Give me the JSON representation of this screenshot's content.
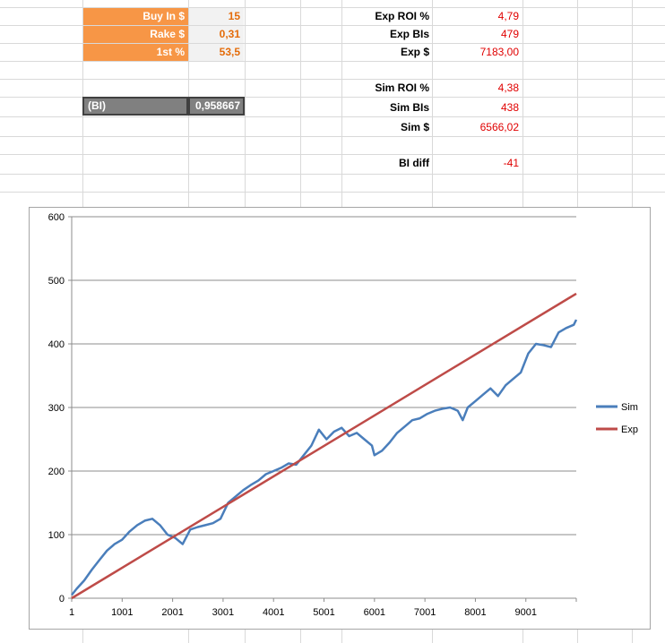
{
  "inputs": [
    {
      "label": "Buy In $",
      "value": "15"
    },
    {
      "label": "Rake $",
      "value": "0,31"
    },
    {
      "label": "1st %",
      "value": "53,5"
    }
  ],
  "bi": {
    "label": "(BI)",
    "value": "0,958667"
  },
  "stats": [
    {
      "label": "Exp ROI %",
      "value": "4,79"
    },
    {
      "label": "Exp BIs",
      "value": "479"
    },
    {
      "label": "Exp $",
      "value": "7183,00"
    },
    {
      "label": "Sim ROI %",
      "value": "4,38"
    },
    {
      "label": "Sim BIs",
      "value": "438"
    },
    {
      "label": "Sim $",
      "value": "6566,02"
    },
    {
      "label": "BI diff",
      "value": "-41"
    }
  ],
  "colors": {
    "orange": "#f79646",
    "sim": "#4a7ebb",
    "exp": "#be4b48",
    "red_text": "#e00000"
  },
  "chart_data": {
    "type": "line",
    "title": "",
    "xlabel": "",
    "ylabel": "",
    "ylim": [
      0,
      600
    ],
    "xlim": [
      1,
      10000
    ],
    "yticks": [
      0,
      100,
      200,
      300,
      400,
      500,
      600
    ],
    "xticks": [
      "1",
      "1001",
      "2001",
      "3001",
      "4001",
      "5001",
      "6001",
      "7001",
      "8001",
      "9001"
    ],
    "grid": true,
    "legend_position": "right",
    "series": [
      {
        "name": "Sim",
        "color": "#4a7ebb",
        "x": [
          1,
          100,
          250,
          400,
          550,
          700,
          850,
          1000,
          1150,
          1300,
          1450,
          1600,
          1750,
          1900,
          2050,
          2200,
          2350,
          2500,
          2650,
          2800,
          2950,
          3100,
          3250,
          3400,
          3550,
          3700,
          3850,
          4000,
          4150,
          4300,
          4450,
          4600,
          4750,
          4900,
          5050,
          5200,
          5350,
          5500,
          5650,
          5800,
          5950,
          6000,
          6150,
          6300,
          6450,
          6600,
          6750,
          6900,
          7050,
          7200,
          7350,
          7500,
          7650,
          7750,
          7850,
          8000,
          8150,
          8300,
          8450,
          8600,
          8750,
          8900,
          9050,
          9200,
          9350,
          9500,
          9650,
          9800,
          9950,
          10000
        ],
        "values": [
          5,
          15,
          28,
          45,
          60,
          75,
          85,
          92,
          105,
          115,
          122,
          125,
          115,
          100,
          95,
          85,
          108,
          112,
          115,
          118,
          125,
          150,
          160,
          170,
          178,
          185,
          195,
          200,
          205,
          212,
          210,
          225,
          240,
          265,
          250,
          262,
          268,
          255,
          260,
          250,
          240,
          225,
          232,
          245,
          260,
          270,
          280,
          283,
          290,
          295,
          298,
          300,
          295,
          280,
          300,
          310,
          320,
          330,
          318,
          335,
          345,
          355,
          385,
          400,
          398,
          395,
          418,
          425,
          430,
          438
        ]
      },
      {
        "name": "Exp",
        "color": "#be4b48",
        "x": [
          1,
          10000
        ],
        "values": [
          0,
          479
        ]
      }
    ]
  }
}
